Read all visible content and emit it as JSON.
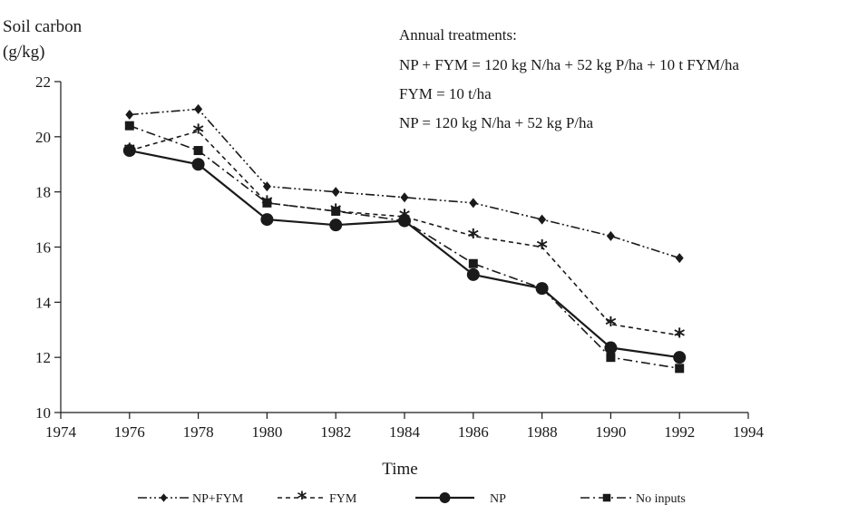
{
  "chart_data": {
    "type": "line",
    "ylabel_line1": "Soil carbon",
    "ylabel_line2": "(g/kg)",
    "xlabel": "Time",
    "xlim": [
      1974,
      1994
    ],
    "ylim": [
      10,
      22
    ],
    "x_ticks": [
      1974,
      1976,
      1978,
      1980,
      1982,
      1984,
      1986,
      1988,
      1990,
      1992,
      1994
    ],
    "y_ticks": [
      10,
      12,
      14,
      16,
      18,
      20,
      22
    ],
    "grid": false,
    "legend_position": "bottom",
    "annotation": {
      "heading": "Annual treatments:",
      "lines": [
        "NP + FYM = 120 kg N/ha + 52 kg P/ha + 10 t FYM/ha",
        "FYM = 10 t/ha",
        "NP = 120 kg N/ha + 52 kg P/ha"
      ]
    },
    "x": [
      1976,
      1978,
      1980,
      1982,
      1984,
      1986,
      1988,
      1990,
      1992
    ],
    "series": [
      {
        "name": "NP+FYM",
        "marker": "diamond",
        "dash": "dash-dot-dot",
        "values": [
          20.8,
          21.0,
          18.2,
          18.0,
          17.8,
          17.6,
          17.0,
          16.4,
          15.6
        ]
      },
      {
        "name": "FYM",
        "marker": "asterisk",
        "dash": "dashed",
        "values": [
          19.5,
          20.2,
          17.6,
          17.3,
          17.1,
          16.4,
          16.0,
          13.2,
          12.8
        ]
      },
      {
        "name": "NP",
        "marker": "circle",
        "dash": "solid",
        "values": [
          19.5,
          19.0,
          17.0,
          16.8,
          16.95,
          15.0,
          14.5,
          12.35,
          12.0
        ]
      },
      {
        "name": "No inputs",
        "marker": "square",
        "dash": "dash-dot",
        "values": [
          20.4,
          19.5,
          17.6,
          17.3,
          16.95,
          15.4,
          14.5,
          12.0,
          11.6
        ]
      }
    ],
    "line_color": "#1a1a1a"
  }
}
